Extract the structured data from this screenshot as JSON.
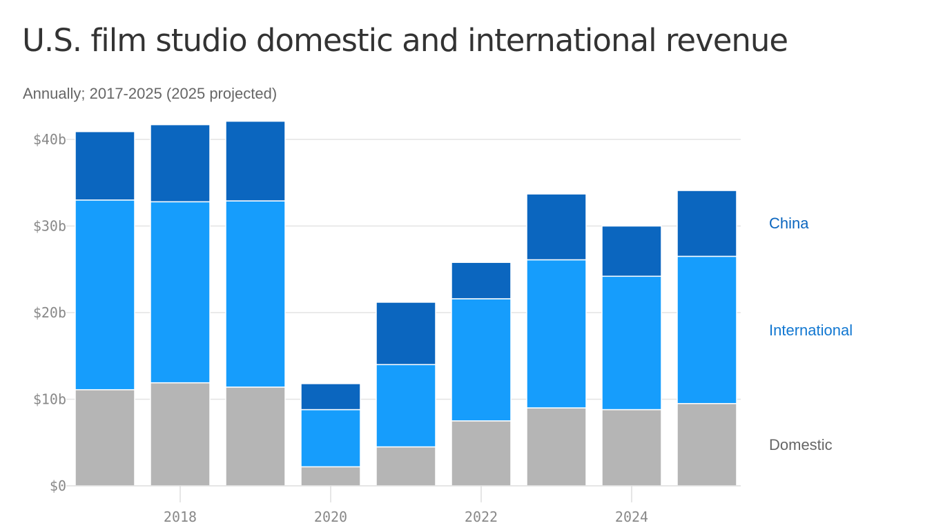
{
  "header": {
    "title": "U.S. film studio domestic and international revenue",
    "subtitle": "Annually; 2017-2025 (2025 projected)"
  },
  "colors": {
    "domestic": "#b5b5b5",
    "international": "#169dfc",
    "china": "#0b66bf",
    "grid": "#e3e3e3",
    "axis_text": "#888888",
    "domestic_label": "#666666",
    "international_label": "#1177d1",
    "china_label": "#0b66bf"
  },
  "chart_data": {
    "type": "bar",
    "stacked": true,
    "x": [
      2017,
      2018,
      2019,
      2020,
      2021,
      2022,
      2023,
      2024,
      2025
    ],
    "x_tick_labels": [
      "2018",
      "2020",
      "2022",
      "2024"
    ],
    "x_tick_values": [
      2018,
      2020,
      2022,
      2024
    ],
    "y_tick_labels": [
      "$0",
      "$10b",
      "$20b",
      "$30b",
      "$40b"
    ],
    "y_tick_values": [
      0,
      10,
      20,
      30,
      40
    ],
    "ylim": [
      0,
      42
    ],
    "grid": true,
    "legend": "right, inline labels",
    "series": [
      {
        "name": "Domestic",
        "key": "domestic",
        "values": [
          11.1,
          11.9,
          11.4,
          2.2,
          4.5,
          7.5,
          9.0,
          8.8,
          9.5
        ]
      },
      {
        "name": "International",
        "key": "international",
        "values": [
          21.9,
          20.9,
          21.5,
          6.6,
          9.5,
          14.1,
          17.1,
          15.4,
          17.0
        ]
      },
      {
        "name": "China",
        "key": "china",
        "values": [
          7.9,
          8.9,
          9.2,
          3.0,
          7.2,
          4.2,
          7.6,
          5.8,
          7.6
        ]
      }
    ]
  }
}
